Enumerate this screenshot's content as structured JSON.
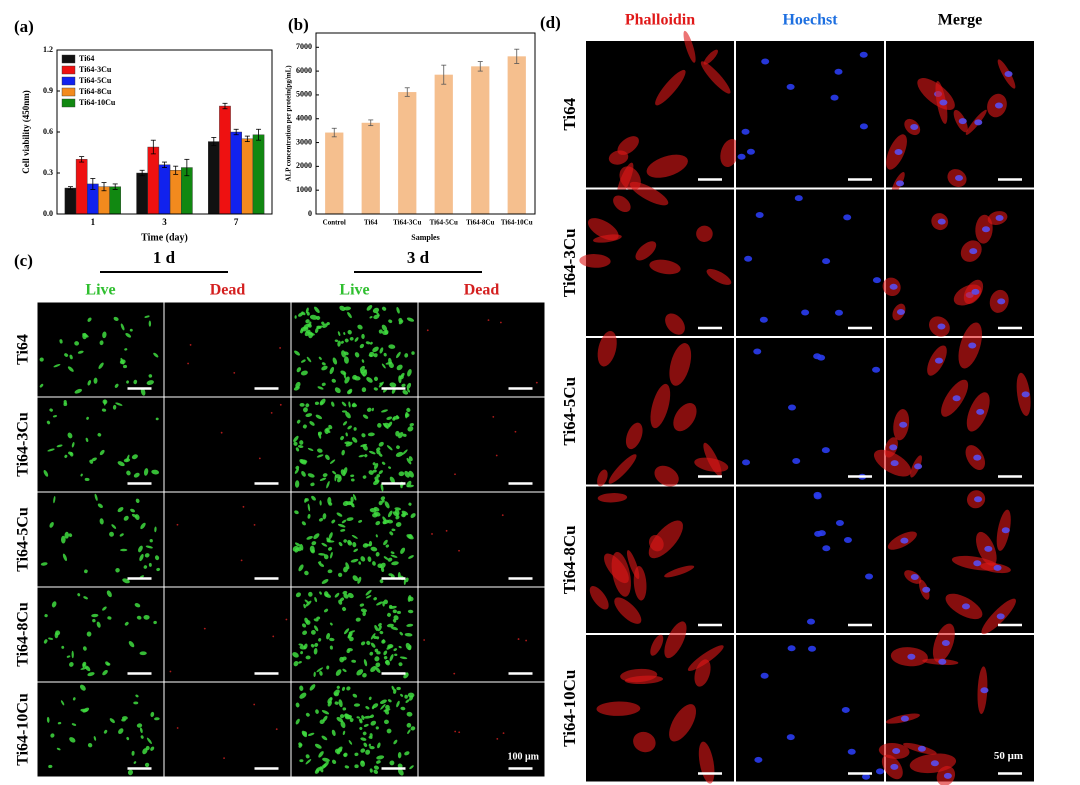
{
  "chart_data": [
    {
      "type": "bar",
      "panel_label": "(a)",
      "ylabel": "Cell viability (450nm)",
      "xlabel": "Time (day)",
      "categories": [
        "1",
        "3",
        "7"
      ],
      "series": [
        {
          "name": "Ti64",
          "color": "#111111",
          "values": [
            0.19,
            0.3,
            0.53
          ],
          "errors": [
            0.01,
            0.02,
            0.03
          ]
        },
        {
          "name": "Ti64-3Cu",
          "color": "#ee1111",
          "values": [
            0.4,
            0.49,
            0.79
          ],
          "errors": [
            0.02,
            0.05,
            0.02
          ]
        },
        {
          "name": "Ti64-5Cu",
          "color": "#1122ee",
          "values": [
            0.22,
            0.36,
            0.6
          ],
          "errors": [
            0.04,
            0.02,
            0.02
          ]
        },
        {
          "name": "Ti64-8Cu",
          "color": "#f28a1e",
          "values": [
            0.2,
            0.32,
            0.55
          ],
          "errors": [
            0.03,
            0.03,
            0.02
          ]
        },
        {
          "name": "Ti64-10Cu",
          "color": "#118811",
          "values": [
            0.2,
            0.34,
            0.58
          ],
          "errors": [
            0.02,
            0.06,
            0.04
          ]
        }
      ],
      "ylim": [
        0,
        1.2
      ],
      "yticks": [
        {
          "value": 0,
          "label": "0.0"
        },
        0.3,
        0.6,
        0.9,
        1.2
      ],
      "legend": "upper left"
    },
    {
      "type": "bar",
      "panel_label": "(b)",
      "ylabel": "ALP concentration per protein(pg/mL)",
      "xlabel": "Samples",
      "categories": [
        "Control",
        "Ti64",
        "Ti64-3Cu",
        "Ti64-5Cu",
        "Ti64-8Cu",
        "Ti64-10Cu"
      ],
      "values": [
        3420,
        3830,
        5120,
        5850,
        6200,
        6620
      ],
      "errors": [
        180,
        120,
        180,
        400,
        200,
        300
      ],
      "color": "#f5bf8e",
      "ylim": [
        0,
        7600
      ],
      "yticks": [
        0,
        1000,
        2000,
        3000,
        4000,
        5000,
        6000,
        7000
      ]
    }
  ],
  "panel_c": {
    "panel_label": "(c)",
    "times": [
      "1 d",
      "3 d"
    ],
    "columns": [
      "Live",
      "Dead",
      "Live",
      "Dead"
    ],
    "rows": [
      "Ti64",
      "Ti64-3Cu",
      "Ti64-5Cu",
      "Ti64-8Cu",
      "Ti64-10Cu"
    ],
    "scale": "100 μm"
  },
  "panel_d": {
    "panel_label": "(d)",
    "columns": [
      "Phalloidin",
      "Hoechst",
      "Merge"
    ],
    "rows": [
      "Ti64",
      "Ti64-3Cu",
      "Ti64-5Cu",
      "Ti64-8Cu",
      "Ti64-10Cu"
    ],
    "scale": "50 μm"
  }
}
